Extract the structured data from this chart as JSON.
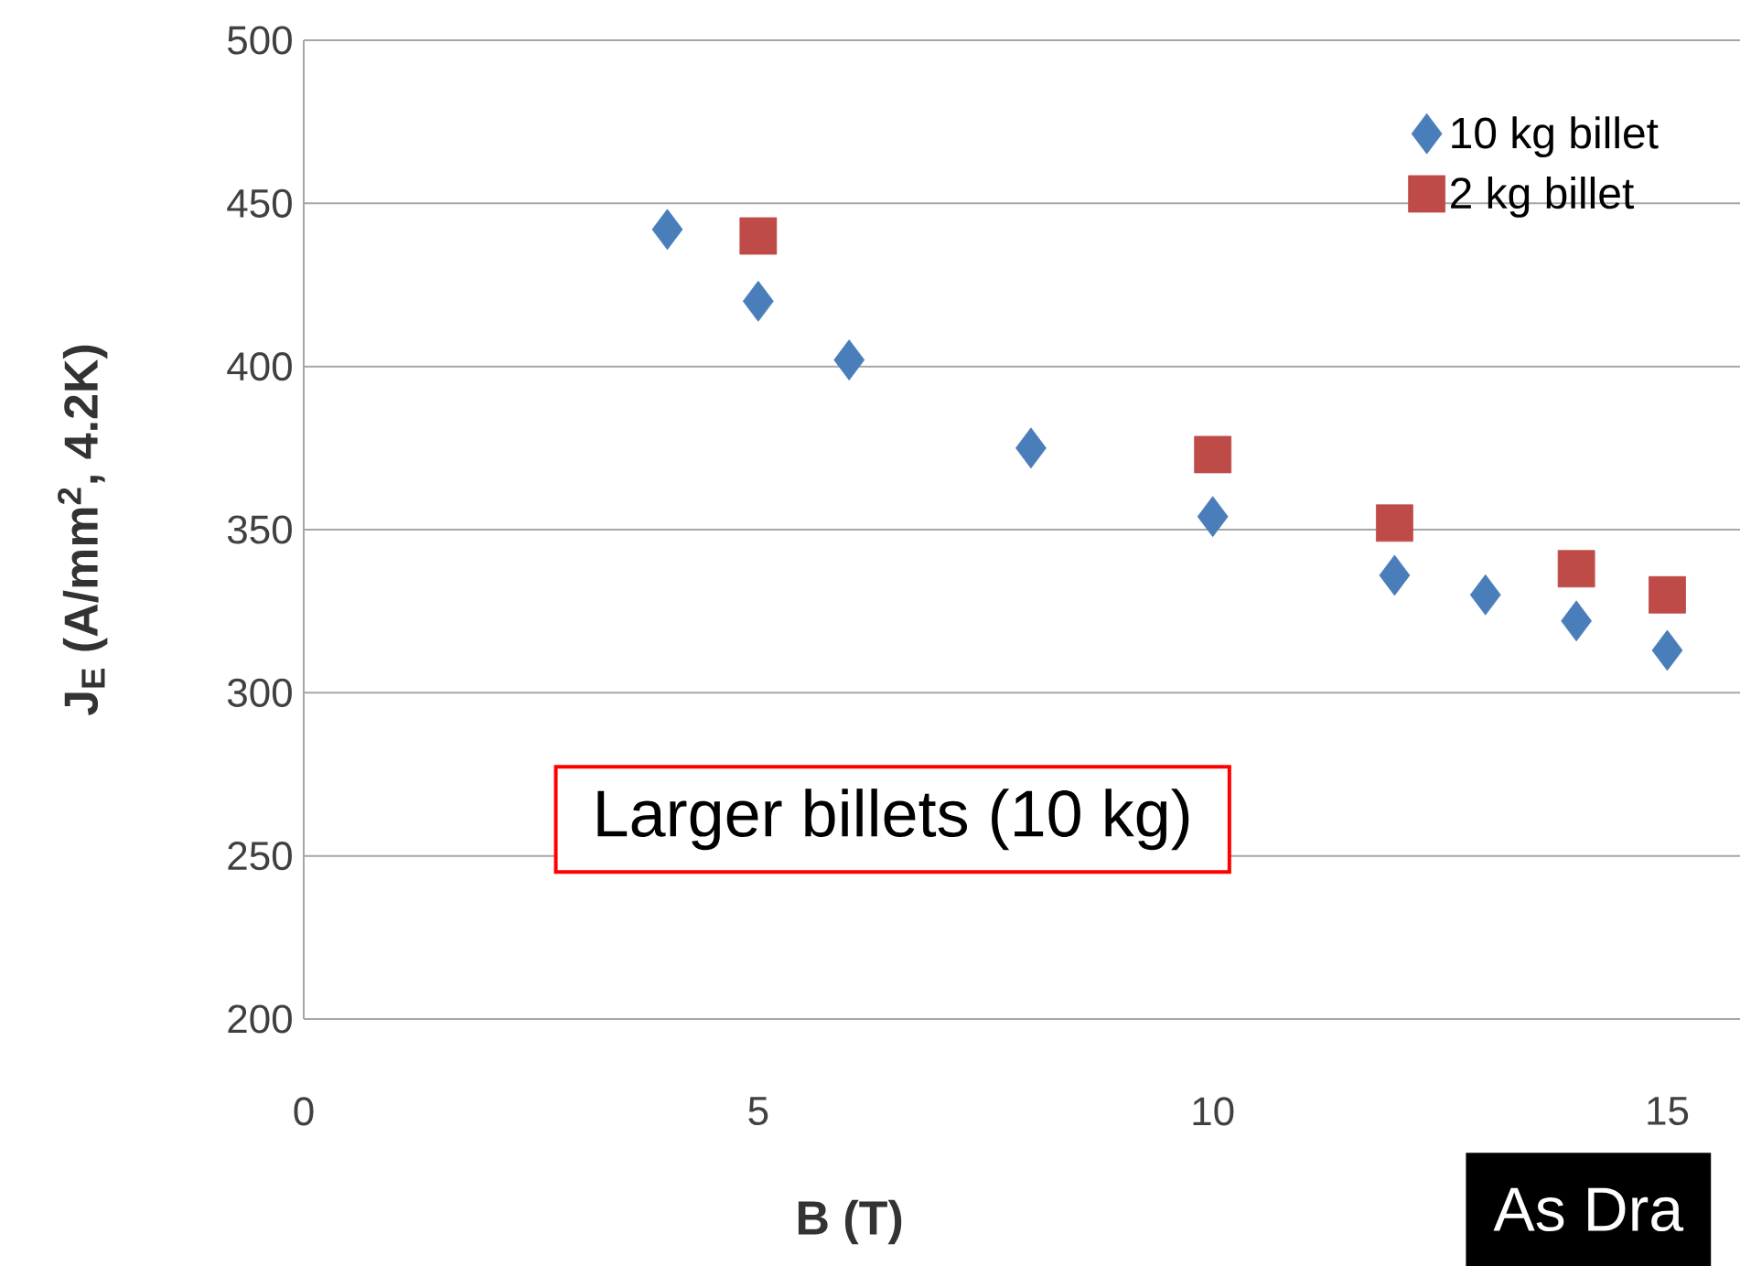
{
  "chart_data": {
    "type": "scatter",
    "xlabel": "B (T)",
    "ylabel": "J$_{E}$ (A/mm$^{2}$, 4.2K)",
    "xlim": [
      0,
      15.8
    ],
    "xticks": [
      0,
      5,
      10,
      15
    ],
    "ylim": [
      200,
      500
    ],
    "yticks": [
      200,
      250,
      300,
      350,
      400,
      450,
      500
    ],
    "grid": "y",
    "legend": "top right",
    "series": [
      {
        "name": "10 kg billet",
        "color": "#4a7ebb",
        "marker": "diamond",
        "x": [
          4,
          5,
          6,
          8,
          10,
          12,
          13,
          14,
          15
        ],
        "values": [
          442,
          420,
          402,
          375,
          354,
          336,
          330,
          322,
          313
        ]
      },
      {
        "name": "2 kg billet",
        "color": "#be4b48",
        "marker": "square",
        "x": [
          5,
          10,
          12,
          14,
          15
        ],
        "values": [
          440,
          373,
          352,
          338,
          330
        ]
      }
    ],
    "annotations": [
      "Larger billets (10 kg)",
      "As Dra"
    ]
  }
}
